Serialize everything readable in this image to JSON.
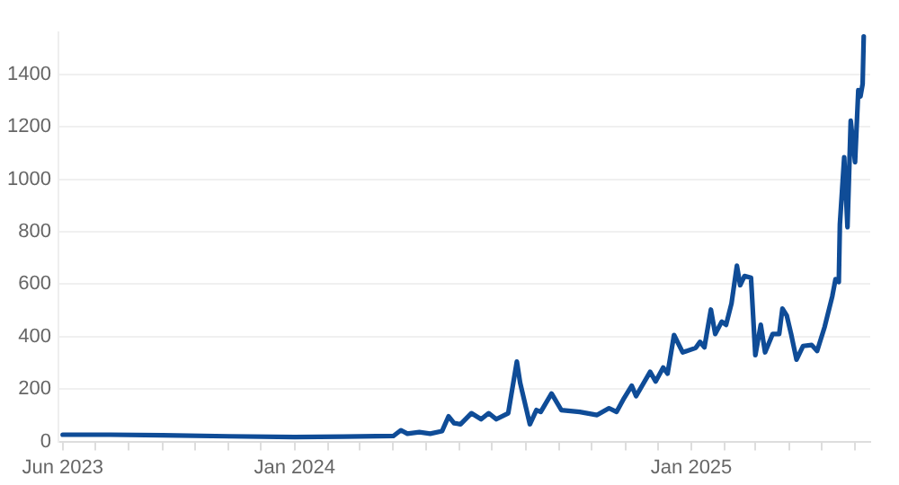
{
  "chart_data": {
    "type": "line",
    "x": [
      "2023-06-01",
      "2023-07-15",
      "2023-09-01",
      "2023-11-01",
      "2024-01-01",
      "2024-02-15",
      "2024-04-01",
      "2024-04-08",
      "2024-04-14",
      "2024-04-25",
      "2024-05-05",
      "2024-05-16",
      "2024-05-22",
      "2024-05-27",
      "2024-06-02",
      "2024-06-12",
      "2024-06-21",
      "2024-06-28",
      "2024-07-05",
      "2024-07-16",
      "2024-07-24",
      "2024-07-27",
      "2024-08-05",
      "2024-08-11",
      "2024-08-15",
      "2024-08-25",
      "2024-09-03",
      "2024-09-20",
      "2024-10-06",
      "2024-10-17",
      "2024-10-24",
      "2024-10-31",
      "2024-11-07",
      "2024-11-11",
      "2024-11-24",
      "2024-11-29",
      "2024-12-06",
      "2024-12-10",
      "2024-12-16",
      "2024-12-24",
      "2025-01-05",
      "2025-01-09",
      "2025-01-13",
      "2025-01-19",
      "2025-01-23",
      "2025-01-29",
      "2025-02-02",
      "2025-02-07",
      "2025-02-12",
      "2025-02-15",
      "2025-02-19",
      "2025-02-25",
      "2025-03-01",
      "2025-03-06",
      "2025-03-10",
      "2025-03-17",
      "2025-03-23",
      "2025-03-26",
      "2025-03-30",
      "2025-04-03",
      "2025-04-08",
      "2025-04-14",
      "2025-04-22",
      "2025-04-27",
      "2025-05-04",
      "2025-05-11",
      "2025-05-14",
      "2025-05-17",
      "2025-05-18",
      "2025-05-22",
      "2025-05-25",
      "2025-05-28",
      "2025-06-01",
      "2025-06-04",
      "2025-06-06",
      "2025-06-08",
      "2025-06-09"
    ],
    "series": [
      {
        "color": "#0f4c97",
        "values": [
          26,
          26,
          24,
          20,
          17,
          19,
          21,
          43,
          30,
          36,
          30,
          40,
          96,
          70,
          66,
          108,
          85,
          108,
          85,
          108,
          305,
          224,
          66,
          120,
          113,
          183,
          120,
          113,
          101,
          127,
          113,
          166,
          213,
          173,
          266,
          229,
          282,
          259,
          406,
          340,
          357,
          380,
          359,
          503,
          410,
          457,
          445,
          526,
          670,
          596,
          631,
          624,
          329,
          445,
          340,
          410,
          410,
          507,
          480,
          410,
          312,
          364,
          368,
          345,
          438,
          554,
          619,
          608,
          828,
          1084,
          817,
          1223,
          1065,
          1340,
          1316,
          1363,
          1544
        ]
      }
    ],
    "xlim": [
      "2023-05-28",
      "2025-06-15"
    ],
    "xticks": [
      {
        "value": "2023-06",
        "label": "Jun 2023"
      },
      {
        "value": "2023-07",
        "label": null
      },
      {
        "value": "2023-08",
        "label": null
      },
      {
        "value": "2023-09",
        "label": null
      },
      {
        "value": "2023-10",
        "label": null
      },
      {
        "value": "2023-11",
        "label": null
      },
      {
        "value": "2023-12",
        "label": null
      },
      {
        "value": "2024-01",
        "label": "Jan 2024"
      },
      {
        "value": "2024-02",
        "label": null
      },
      {
        "value": "2024-03",
        "label": null
      },
      {
        "value": "2024-04",
        "label": null
      },
      {
        "value": "2024-05",
        "label": null
      },
      {
        "value": "2024-06",
        "label": null
      },
      {
        "value": "2024-07",
        "label": null
      },
      {
        "value": "2024-08",
        "label": null
      },
      {
        "value": "2024-09",
        "label": null
      },
      {
        "value": "2024-10",
        "label": null
      },
      {
        "value": "2024-11",
        "label": null
      },
      {
        "value": "2024-12",
        "label": null
      },
      {
        "value": "2025-01",
        "label": "Jan 2025"
      },
      {
        "value": "2025-02",
        "label": null
      },
      {
        "value": "2025-03",
        "label": null
      },
      {
        "value": "2025-04",
        "label": null
      },
      {
        "value": "2025-05",
        "label": null
      },
      {
        "value": "2025-06",
        "label": null
      }
    ],
    "ylim": [
      0,
      1560
    ],
    "yticks": [
      0,
      200,
      400,
      600,
      800,
      1000,
      1200,
      1400
    ],
    "grid": "y",
    "marker": "none",
    "line_style": "solid"
  }
}
